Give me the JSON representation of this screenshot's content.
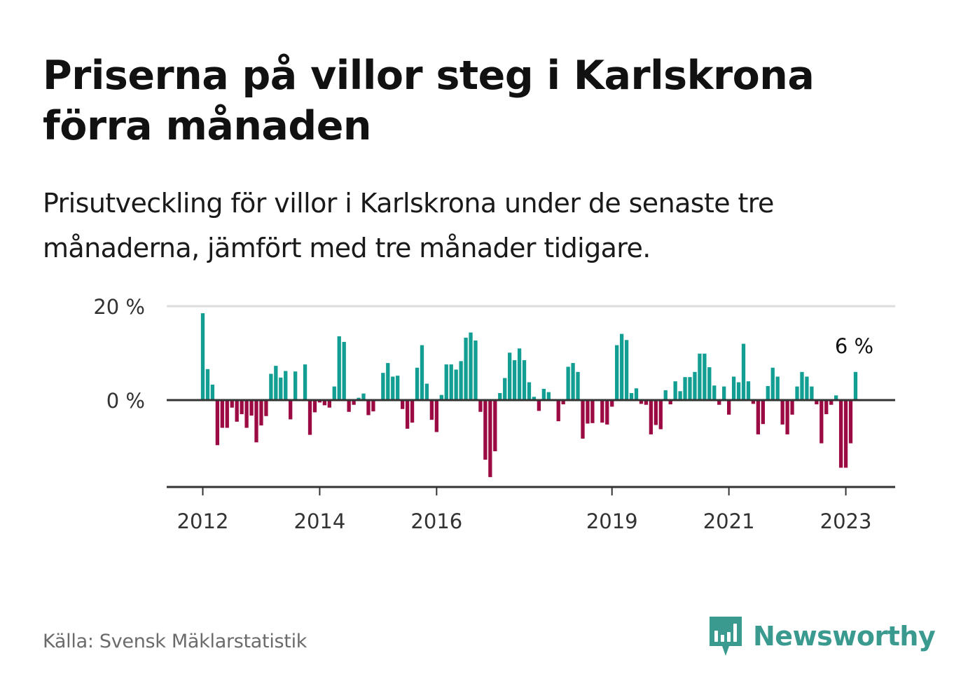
{
  "title": "Priserna på villor steg i Karlskrona förra månaden",
  "subtitle": "Prisutveckling för villor i Karlskrona under de senaste tre månaderna, jämfört med tre månader tidigare.",
  "source": "Källa: Svensk Mäklarstatistik",
  "brand": {
    "name": "Newsworthy",
    "icon": "newsworthy-logo-icon"
  },
  "colors": {
    "positive": "#129e92",
    "negative": "#9b0a42",
    "axis": "#333333",
    "grid": "#dddddd",
    "brand": "#3a9a8f"
  },
  "chart_data": {
    "type": "bar",
    "ylim": [
      -20,
      20
    ],
    "y_ticks": [
      {
        "value": 20,
        "label": "20 %"
      },
      {
        "value": 0,
        "label": "0 %"
      }
    ],
    "x_ticks": [
      {
        "index": 0,
        "label": "2012"
      },
      {
        "index": 24,
        "label": "2014"
      },
      {
        "index": 48,
        "label": "2016"
      },
      {
        "index": 84,
        "label": "2019"
      },
      {
        "index": 108,
        "label": "2021"
      },
      {
        "index": 132,
        "label": "2023"
      }
    ],
    "grid": true,
    "last_value_label": "6 %",
    "values": [
      18.5,
      6.6,
      3.3,
      -9.6,
      -5.9,
      -5.9,
      -1.6,
      -4.6,
      -3.0,
      -5.9,
      -3.3,
      -9.0,
      -5.4,
      -3.4,
      5.6,
      7.3,
      4.8,
      6.2,
      -4.1,
      6.1,
      0,
      7.6,
      -7.4,
      -2.6,
      -0.5,
      -1.1,
      -1.6,
      2.9,
      13.6,
      12.4,
      -2.5,
      -1.0,
      0.5,
      1.4,
      -3.2,
      -2.4,
      0,
      5.8,
      7.9,
      5.0,
      5.2,
      -1.9,
      -6.1,
      -4.8,
      6.9,
      11.7,
      3.5,
      -4.2,
      -6.8,
      1.1,
      7.6,
      7.6,
      6.5,
      8.3,
      13.3,
      14.4,
      12.7,
      -2.5,
      -12.7,
      -16.4,
      -10.9,
      1.5,
      4.7,
      10.1,
      8.5,
      11.0,
      8.5,
      3.8,
      0.7,
      -2.3,
      2.4,
      1.7,
      0,
      -4.5,
      -0.9,
      7.1,
      7.9,
      6.0,
      -8.2,
      -5.0,
      -4.9,
      0,
      -4.8,
      -5.2,
      -1.4,
      11.7,
      14.1,
      12.8,
      1.5,
      2.5,
      -0.8,
      -1.0,
      -7.3,
      -5.3,
      -6.2,
      2.1,
      -0.9,
      4.0,
      1.9,
      4.9,
      4.9,
      6.0,
      9.9,
      9.9,
      7.0,
      3.1,
      -1.0,
      2.9,
      -3.1,
      5.0,
      3.8,
      12.0,
      4.0,
      -0.8,
      -7.3,
      -5.1,
      3.0,
      6.9,
      5.0,
      -5.2,
      -7.3,
      -3.1,
      2.9,
      6.0,
      5.0,
      2.9,
      -0.9,
      -9.2,
      -3.0,
      -1.0,
      1.0,
      -14.4,
      -14.4,
      -9.2,
      6.0
    ]
  }
}
